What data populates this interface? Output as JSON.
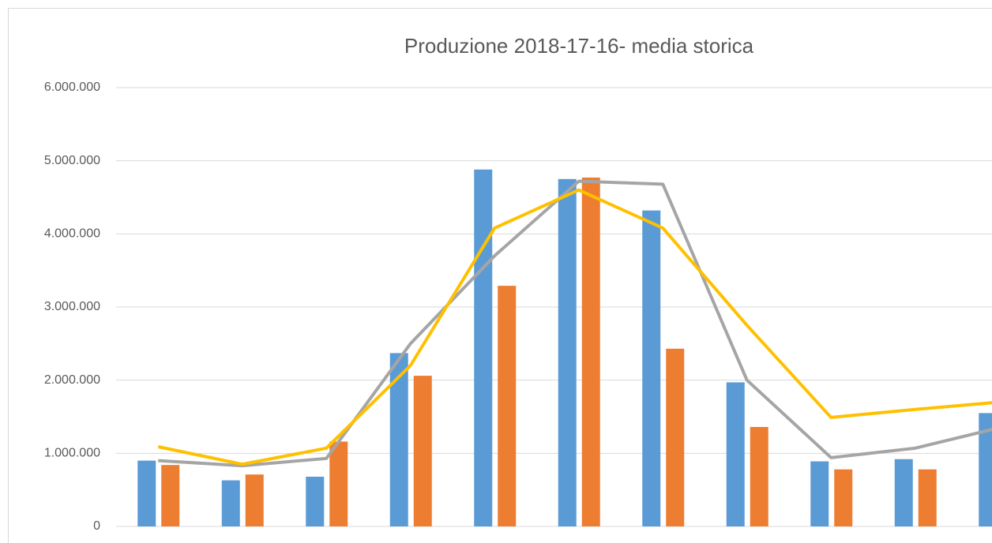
{
  "chart_data": {
    "type": "bar-line",
    "title": "Produzione 2018-17-16- media storica",
    "categories": [
      null,
      null,
      null,
      null,
      null,
      null,
      null,
      null,
      null,
      null,
      null
    ],
    "series": [
      {
        "kind": "bar",
        "color": "#5b9bd5",
        "values": [
          900000,
          630000,
          680000,
          2370000,
          4880000,
          4750000,
          4320000,
          1970000,
          890000,
          920000,
          1550000
        ]
      },
      {
        "kind": "bar",
        "color": "#ed7d31",
        "values": [
          840000,
          710000,
          1160000,
          2060000,
          3290000,
          4770000,
          2430000,
          1360000,
          780000,
          780000,
          null
        ]
      },
      {
        "kind": "line",
        "color": "#a5a5a5",
        "values": [
          900000,
          830000,
          930000,
          2500000,
          3700000,
          4720000,
          4680000,
          2000000,
          940000,
          1070000,
          1350000
        ]
      },
      {
        "kind": "line",
        "color": "#ffc000",
        "values": [
          1090000,
          850000,
          1070000,
          2200000,
          4080000,
          4600000,
          4080000,
          2750000,
          1490000,
          1600000,
          1700000
        ]
      }
    ],
    "ylim": [
      0,
      6000000
    ],
    "yticks": [
      0,
      {
        "value": 1000000,
        "label": "1.000.000"
      },
      {
        "value": 2000000,
        "label": "2.000.000"
      },
      {
        "value": 3000000,
        "label": "3.000.000"
      },
      {
        "value": 4000000,
        "label": "4.000.000"
      },
      {
        "value": 5000000,
        "label": "5.000.000"
      },
      {
        "value": 6000000,
        "label": "6.000.000"
      }
    ],
    "grid": true
  }
}
